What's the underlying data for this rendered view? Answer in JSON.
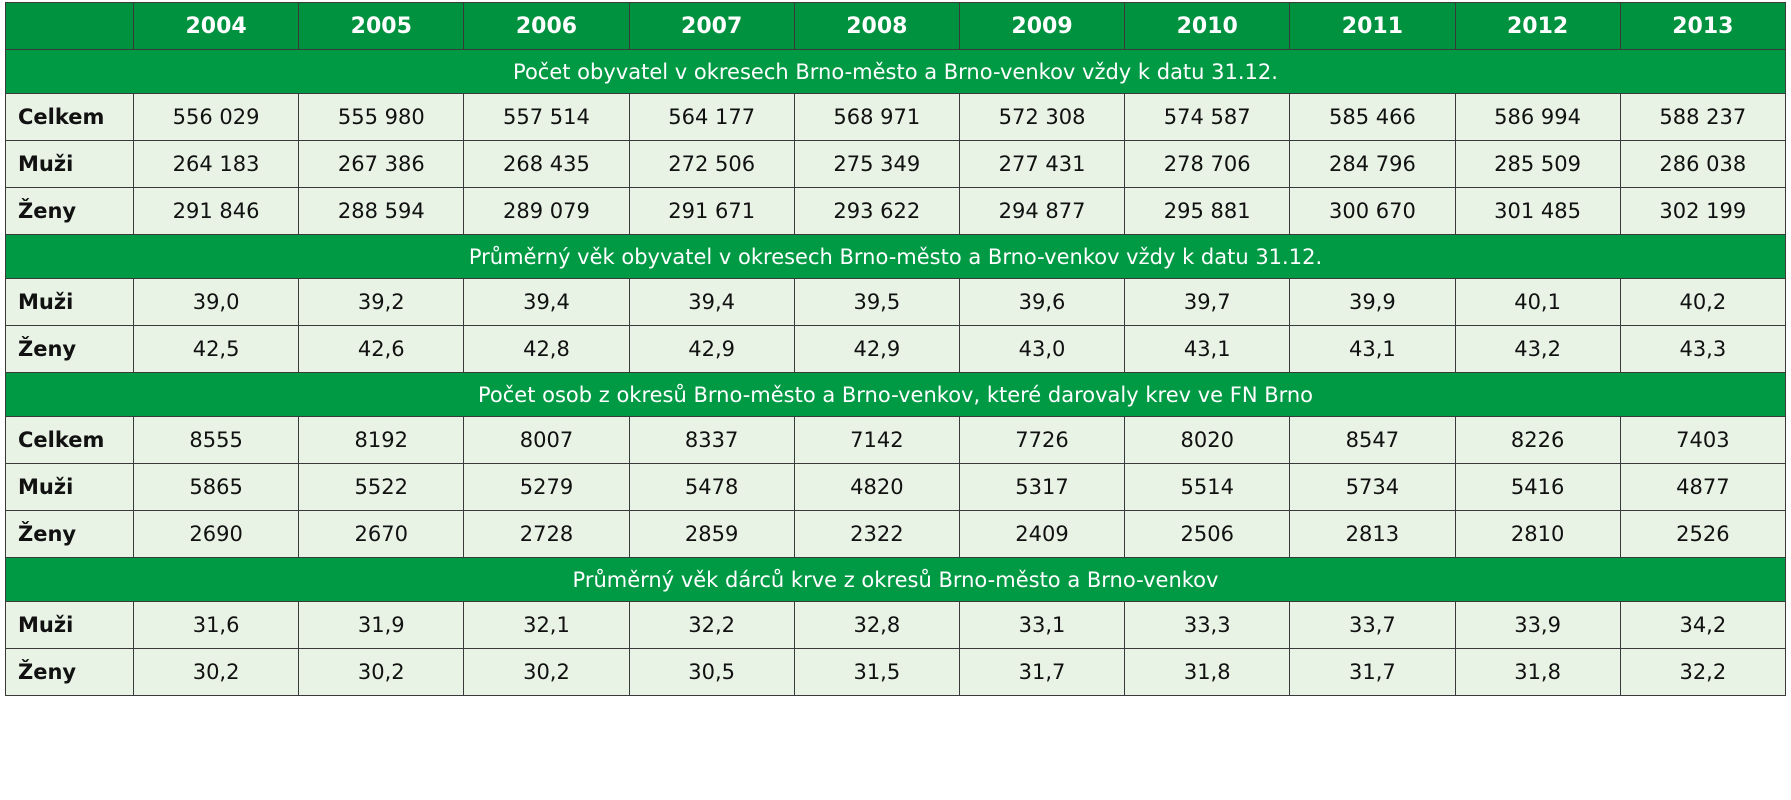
{
  "header": {
    "columns": [
      "2004",
      "2005",
      "2006",
      "2007",
      "2008",
      "2009",
      "2010",
      "2011",
      "2012",
      "2013"
    ]
  },
  "sections": [
    {
      "title": "Počet obyvatel v okresech Brno-město a Brno-venkov vždy k datu 31.12.",
      "rows": [
        {
          "label": "Celkem",
          "values": [
            "556 029",
            "555 980",
            "557 514",
            "564 177",
            "568 971",
            "572 308",
            "574 587",
            "585 466",
            "586 994",
            "588 237"
          ]
        },
        {
          "label": "Muži",
          "values": [
            "264 183",
            "267 386",
            "268 435",
            "272 506",
            "275 349",
            "277 431",
            "278 706",
            "284 796",
            "285 509",
            "286 038"
          ]
        },
        {
          "label": "Ženy",
          "values": [
            "291 846",
            "288 594",
            "289 079",
            "291 671",
            "293 622",
            "294 877",
            "295 881",
            "300 670",
            "301 485",
            "302 199"
          ]
        }
      ]
    },
    {
      "title": "Průměrný věk obyvatel v okresech Brno-město a Brno-venkov vždy k datu 31.12.",
      "rows": [
        {
          "label": "Muži",
          "values": [
            "39,0",
            "39,2",
            "39,4",
            "39,4",
            "39,5",
            "39,6",
            "39,7",
            "39,9",
            "40,1",
            "40,2"
          ]
        },
        {
          "label": "Ženy",
          "values": [
            "42,5",
            "42,6",
            "42,8",
            "42,9",
            "42,9",
            "43,0",
            "43,1",
            "43,1",
            "43,2",
            "43,3"
          ]
        }
      ]
    },
    {
      "title": "Počet osob z okresů Brno-město a Brno-venkov, které darovaly krev ve FN Brno",
      "rows": [
        {
          "label": "Celkem",
          "values": [
            "8555",
            "8192",
            "8007",
            "8337",
            "7142",
            "7726",
            "8020",
            "8547",
            "8226",
            "7403"
          ]
        },
        {
          "label": "Muži",
          "values": [
            "5865",
            "5522",
            "5279",
            "5478",
            "4820",
            "5317",
            "5514",
            "5734",
            "5416",
            "4877"
          ]
        },
        {
          "label": "Ženy",
          "values": [
            "2690",
            "2670",
            "2728",
            "2859",
            "2322",
            "2409",
            "2506",
            "2813",
            "2810",
            "2526"
          ]
        }
      ]
    },
    {
      "title": "Průměrný věk dárců krve z okresů Brno-město a Brno-venkov",
      "rows": [
        {
          "label": "Muži",
          "values": [
            "31,6",
            "31,9",
            "32,1",
            "32,2",
            "32,8",
            "33,1",
            "33,3",
            "33,7",
            "33,9",
            "34,2"
          ]
        },
        {
          "label": "Ženy",
          "values": [
            "30,2",
            "30,2",
            "30,2",
            "30,5",
            "31,5",
            "31,7",
            "31,8",
            "31,7",
            "31,8",
            "32,2"
          ]
        }
      ]
    }
  ]
}
